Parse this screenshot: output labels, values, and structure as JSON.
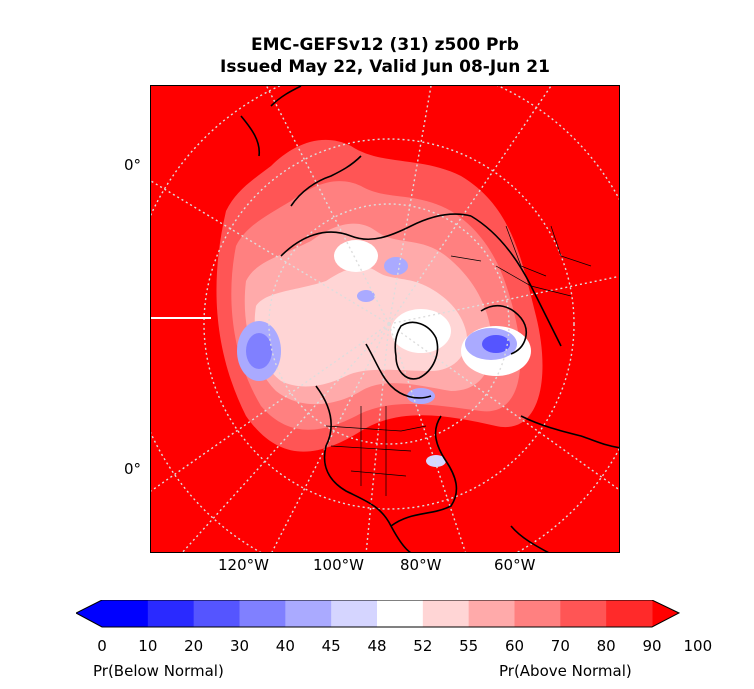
{
  "title": {
    "line1": "EMC-GEFSv12 (31) z500 Prb",
    "line2": "Issued May 22, Valid Jun 08-Jun 21"
  },
  "map": {
    "lat_labels": [
      "0°",
      "0°"
    ],
    "lon_labels": [
      "120°W",
      "100°W",
      "80°W",
      "60°W"
    ],
    "background_color": "#ff0000"
  },
  "colorbar": {
    "ticks": [
      "0",
      "10",
      "20",
      "30",
      "40",
      "45",
      "48",
      "52",
      "55",
      "60",
      "70",
      "80",
      "90",
      "100"
    ],
    "colors": [
      "#0000ff",
      "#2a2aff",
      "#5555ff",
      "#8080ff",
      "#aaaaff",
      "#d5d5ff",
      "#ffffff",
      "#ffd5d5",
      "#ffaaaa",
      "#ff8080",
      "#ff5555",
      "#ff2a2a"
    ],
    "under_color": "#0000ff",
    "over_color": "#ff0000",
    "left_label": "Pr(Below Normal)",
    "right_label": "Pr(Above Normal)"
  }
}
